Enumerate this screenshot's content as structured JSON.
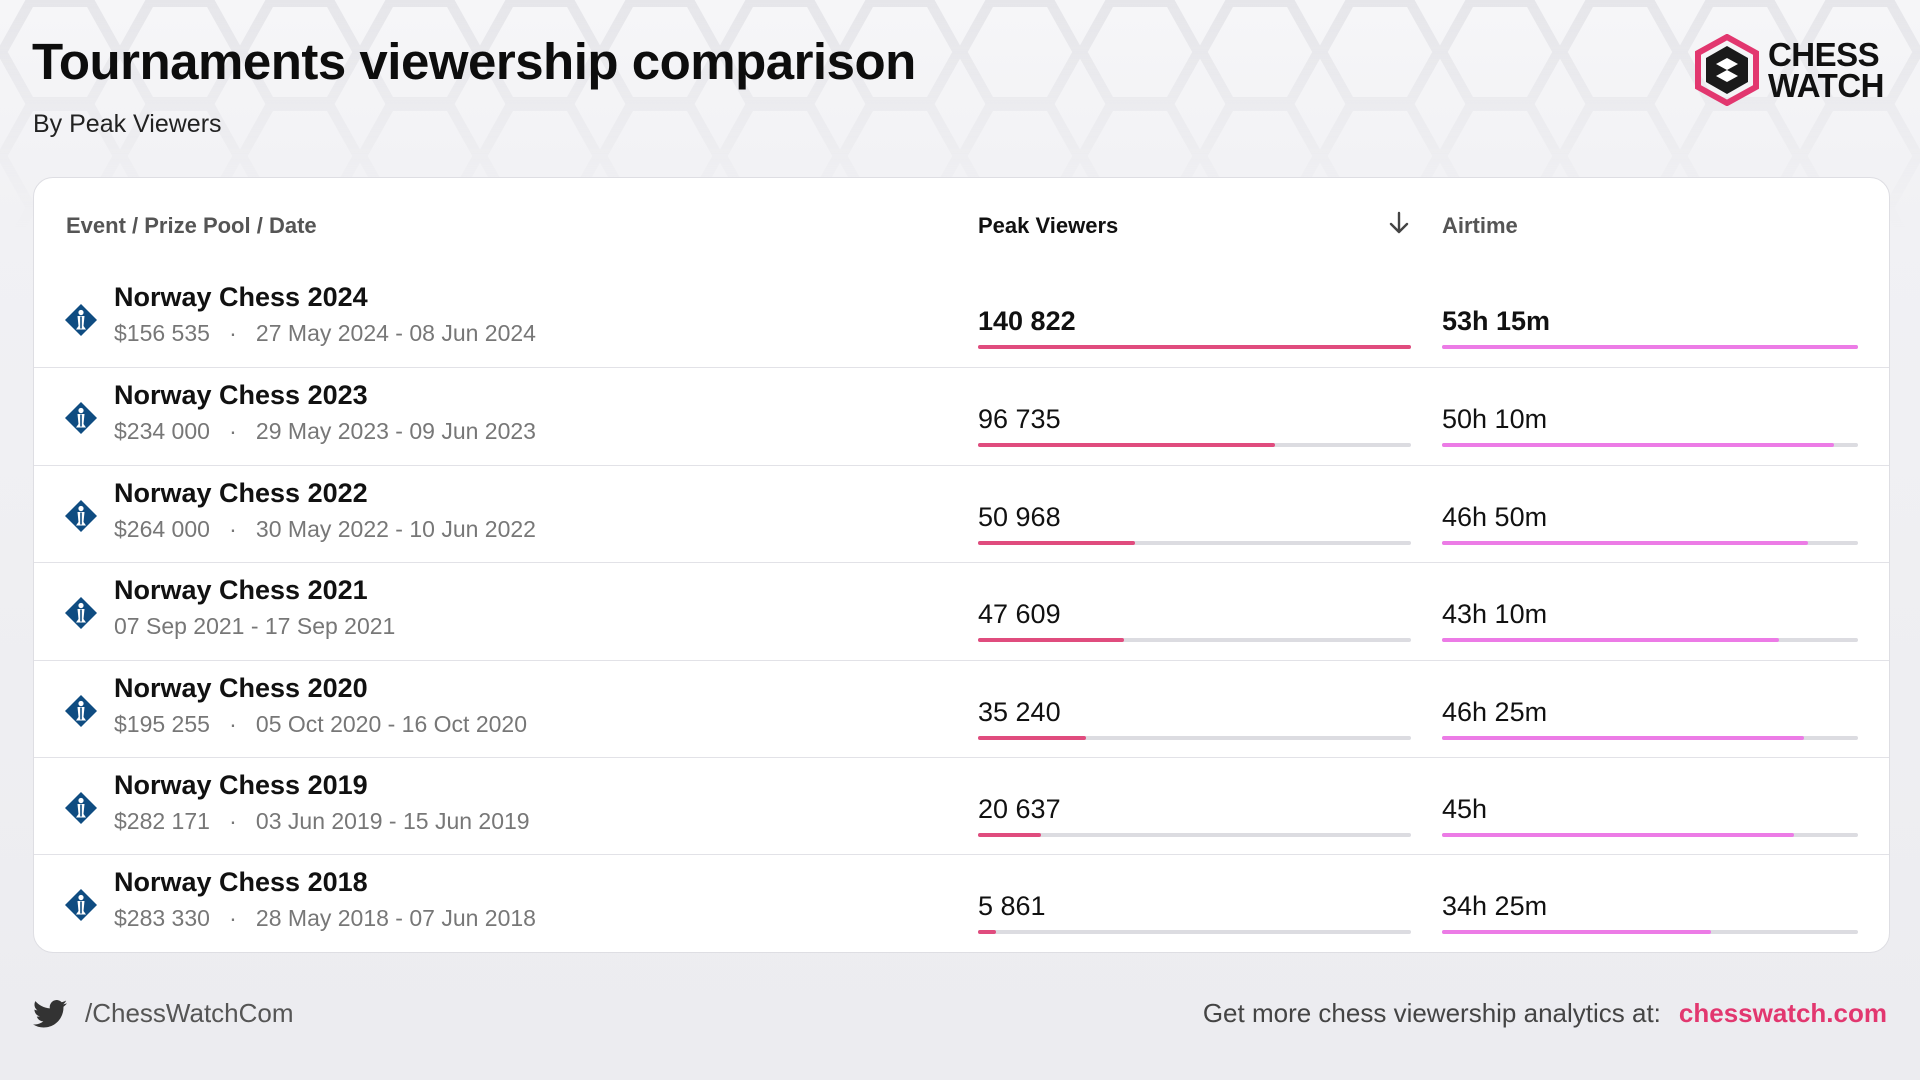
{
  "header": {
    "title": "Tournaments viewership comparison",
    "subtitle": "By Peak Viewers",
    "logo_line1": "CHESS",
    "logo_line2": "WATCH"
  },
  "table": {
    "col_event": "Event / Prize Pool / Date",
    "col_peak": "Peak Viewers",
    "col_airtime": "Airtime",
    "sort_icon": "arrow-down-icon",
    "peak_max": 140822,
    "rows": [
      {
        "name": "Norway Chess 2024",
        "meta": "$156 535   ·   27 May 2024 - 08 Jun 2024",
        "peak": "140 822",
        "peak_value": 140822,
        "airtime": "53h 15m",
        "airtime_fraction": 1.0
      },
      {
        "name": "Norway Chess 2023",
        "meta": "$234 000   ·   29 May 2023 - 09 Jun 2023",
        "peak": "96 735",
        "peak_value": 96735,
        "airtime": "50h 10m",
        "airtime_fraction": 0.942
      },
      {
        "name": "Norway Chess 2022",
        "meta": "$264 000   ·   30 May 2022 - 10 Jun 2022",
        "peak": "50 968",
        "peak_value": 50968,
        "airtime": "46h 50m",
        "airtime_fraction": 0.879
      },
      {
        "name": "Norway Chess 2021",
        "meta": "07 Sep 2021 - 17 Sep 2021",
        "peak": "47 609",
        "peak_value": 47609,
        "airtime": "43h 10m",
        "airtime_fraction": 0.81
      },
      {
        "name": "Norway Chess 2020",
        "meta": "$195 255   ·   05 Oct 2020 - 16 Oct 2020",
        "peak": "35 240",
        "peak_value": 35240,
        "airtime": "46h 25m",
        "airtime_fraction": 0.871
      },
      {
        "name": "Norway Chess 2019",
        "meta": "$282 171   ·   03 Jun 2019 - 15 Jun 2019",
        "peak": "20 637",
        "peak_value": 20637,
        "airtime": "45h",
        "airtime_fraction": 0.845
      },
      {
        "name": "Norway Chess 2018",
        "meta": "$283 330   ·   28 May 2018 - 07 Jun 2018",
        "peak": "5 861",
        "peak_value": 5861,
        "airtime": "34h 25m",
        "airtime_fraction": 0.646
      }
    ]
  },
  "footer": {
    "twitter_handle": "/ChessWatchCom",
    "cta": "Get more chess viewership analytics at:",
    "link": "chesswatch.com"
  },
  "colors": {
    "peak_bar": "#e04c7e",
    "airtime_bar": "#ec7be6",
    "link": "#e2376f",
    "event_icon": "#0f4c81"
  }
}
